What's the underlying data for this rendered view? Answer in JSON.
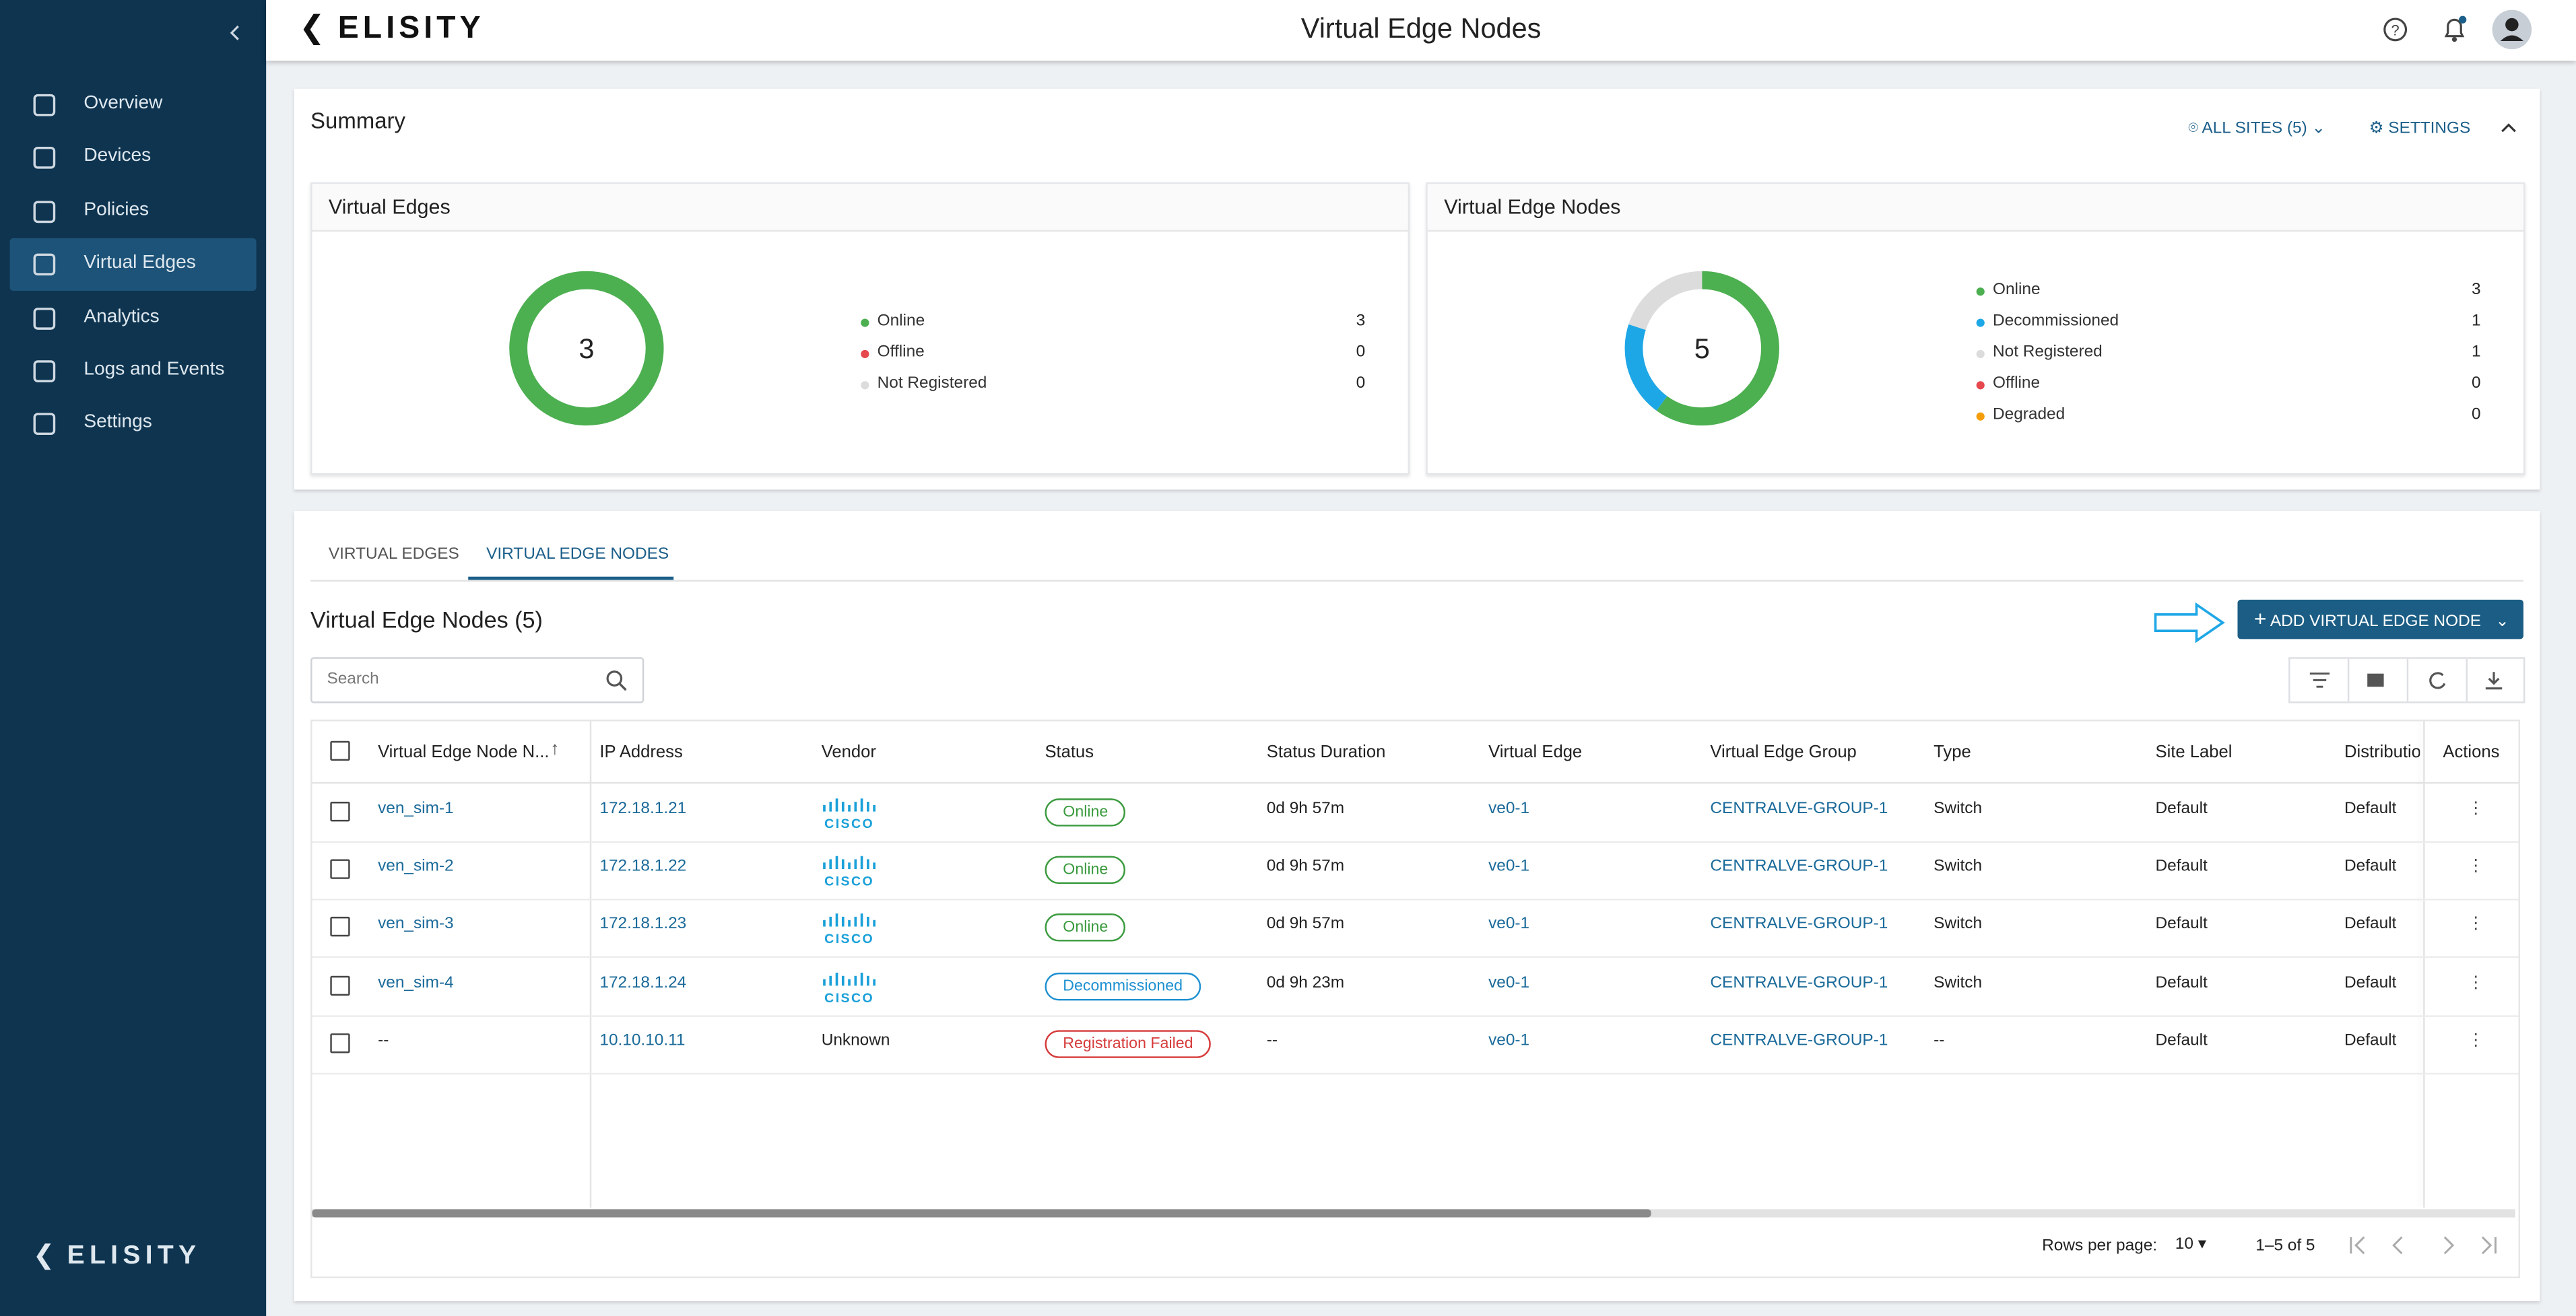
{
  "header": {
    "logo": "ELISITY",
    "title": "Virtual Edge Nodes"
  },
  "sidebar": {
    "items": [
      "Overview",
      "Devices",
      "Policies",
      "Virtual Edges",
      "Analytics",
      "Logs and Events",
      "Settings"
    ],
    "footer_logo": "ELISITY"
  },
  "summary": {
    "title": "Summary",
    "sites": "ALL SITES (5)",
    "settings": "SETTINGS",
    "virtual_edges": {
      "title": "Virtual Edges",
      "total": 3,
      "legend": [
        {
          "name": "Online",
          "color": "#4caf50",
          "value": 3
        },
        {
          "name": "Offline",
          "color": "#e5484d",
          "value": 0
        },
        {
          "name": "Not Registered",
          "color": "#dcdcdc",
          "value": 0
        }
      ]
    },
    "virtual_edge_nodes": {
      "title": "Virtual Edge Nodes",
      "total": 5,
      "legend": [
        {
          "name": "Online",
          "color": "#4caf50",
          "value": 3
        },
        {
          "name": "Decommissioned",
          "color": "#1ea7e6",
          "value": 1
        },
        {
          "name": "Not Registered",
          "color": "#dcdcdc",
          "value": 1
        },
        {
          "name": "Offline",
          "color": "#e5484d",
          "value": 0
        },
        {
          "name": "Degraded",
          "color": "#f59e0b",
          "value": 0
        }
      ]
    }
  },
  "tabs": [
    "VIRTUAL EDGES",
    "VIRTUAL EDGE NODES"
  ],
  "section": {
    "title": "Virtual Edge Nodes (5)",
    "add_button": "ADD VIRTUAL EDGE NODE",
    "search_placeholder": "Search"
  },
  "table": {
    "columns": [
      "Virtual Edge Node N...",
      "IP Address",
      "Vendor",
      "Status",
      "Status Duration",
      "Virtual Edge",
      "Virtual Edge Group",
      "Type",
      "Site Label",
      "Distribution",
      "Actions"
    ],
    "rows": [
      [
        {
          "link": "ven_sim-1"
        },
        {
          "link": "172.18.1.21"
        },
        {
          "logo": "CISCO"
        },
        {
          "status": "Online",
          "color": "#3a9a3e"
        },
        "0d 9h 57m",
        {
          "link": "ve0-1"
        },
        {
          "link": "CENTRALVE-GROUP-1"
        },
        "Switch",
        "Default",
        "Default"
      ],
      [
        {
          "link": "ven_sim-2"
        },
        {
          "link": "172.18.1.22"
        },
        {
          "logo": "CISCO"
        },
        {
          "status": "Online",
          "color": "#3a9a3e"
        },
        "0d 9h 57m",
        {
          "link": "ve0-1"
        },
        {
          "link": "CENTRALVE-GROUP-1"
        },
        "Switch",
        "Default",
        "Default"
      ],
      [
        {
          "link": "ven_sim-3"
        },
        {
          "link": "172.18.1.23"
        },
        {
          "logo": "CISCO"
        },
        {
          "status": "Online",
          "color": "#3a9a3e"
        },
        "0d 9h 57m",
        {
          "link": "ve0-1"
        },
        {
          "link": "CENTRALVE-GROUP-1"
        },
        "Switch",
        "Default",
        "Default"
      ],
      [
        {
          "link": "ven_sim-4"
        },
        {
          "link": "172.18.1.24"
        },
        {
          "logo": "CISCO"
        },
        {
          "status": "Decommissioned",
          "color": "#1e90d0"
        },
        "0d 9h 23m",
        {
          "link": "ve0-1"
        },
        {
          "link": "CENTRALVE-GROUP-1"
        },
        "Switch",
        "Default",
        "Default"
      ],
      [
        "--",
        {
          "link": "10.10.10.11"
        },
        "Unknown",
        {
          "status": "Registration Failed",
          "color": "#d63b3b"
        },
        "--",
        {
          "link": "ve0-1"
        },
        {
          "link": "CENTRALVE-GROUP-1"
        },
        "--",
        "Default",
        "Default"
      ]
    ]
  },
  "pagination": {
    "label": "Rows per page:",
    "rows_per_page": 10,
    "range": "1–5 of 5"
  }
}
